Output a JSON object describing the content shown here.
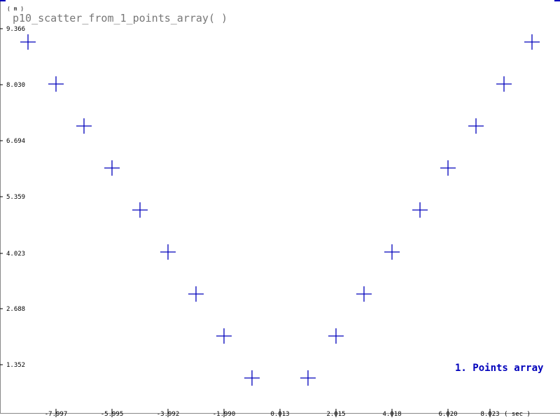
{
  "chart_data": {
    "type": "scatter",
    "title": "p10_scatter_from_1_points_array( )",
    "xlabel": "( sec )",
    "ylabel": "( m )",
    "xlim": [
      -9.0,
      9.0
    ],
    "ylim": [
      0.0,
      10.0
    ],
    "x_ticks": [
      "-7.997",
      "-5.995",
      "-3.992",
      "-1.990",
      "0.013",
      "2.015",
      "4.018",
      "6.020",
      "8.023"
    ],
    "y_ticks": [
      "9.366",
      "8.030",
      "6.694",
      "5.359",
      "4.023",
      "2.688",
      "1.352"
    ],
    "grid": false,
    "legend_position": "bottom-right",
    "series": [
      {
        "name": "1. Points array",
        "color": "#0000bb",
        "marker": "plus",
        "x": [
          -9,
          -8,
          -7,
          -6,
          -5,
          -4,
          -3,
          -2,
          -1,
          1,
          2,
          3,
          4,
          5,
          6,
          7,
          8,
          9
        ],
        "y": [
          9.0,
          8.0,
          7.0,
          6.0,
          5.0,
          4.0,
          3.0,
          2.0,
          1.0,
          1.0,
          2.0,
          3.0,
          4.0,
          5.0,
          6.0,
          7.0,
          8.0,
          9.0
        ]
      }
    ]
  }
}
